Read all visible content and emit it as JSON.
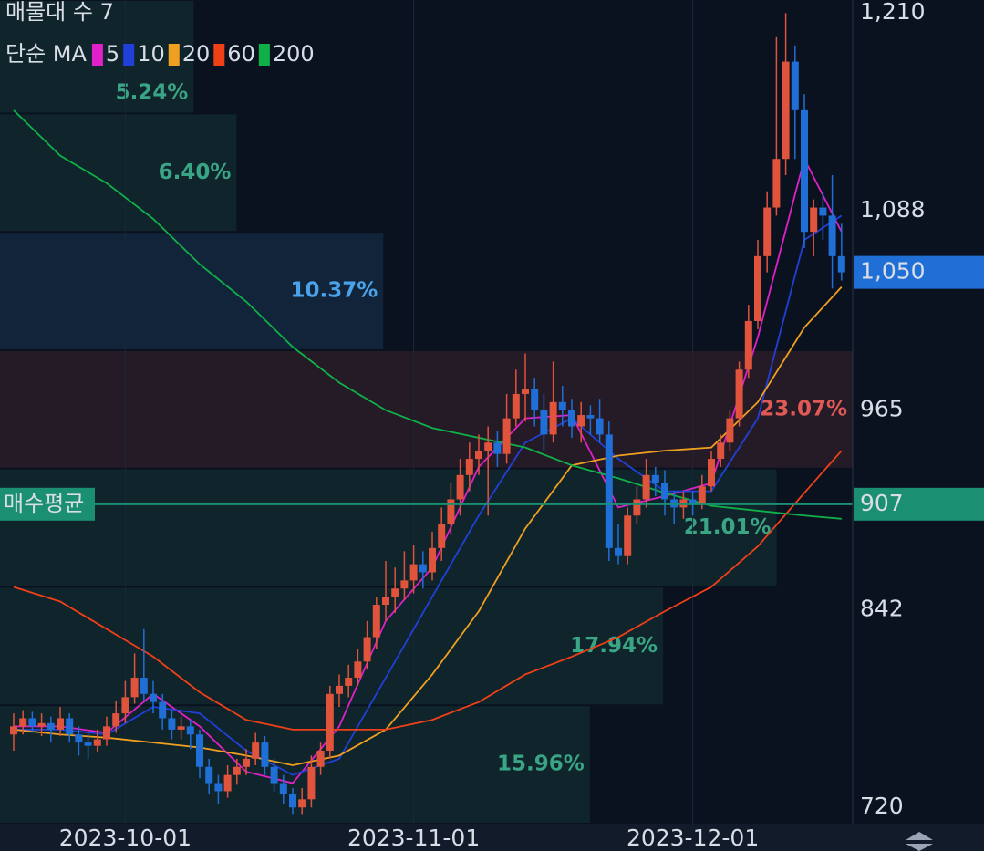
{
  "header": {
    "title": "매물대 수 7",
    "ma_label": "단순 MA"
  },
  "chart_data": {
    "type": "candlestick",
    "categories": [
      null,
      null,
      null,
      null,
      null,
      null,
      null,
      null,
      null,
      null,
      null,
      null,
      "2023-10-01",
      null,
      null,
      null,
      null,
      null,
      null,
      null,
      null,
      null,
      null,
      null,
      null,
      null,
      null,
      null,
      null,
      null,
      null,
      null,
      null,
      null,
      null,
      null,
      null,
      null,
      null,
      null,
      null,
      null,
      null,
      "2023-11-01",
      null,
      null,
      null,
      null,
      null,
      null,
      null,
      null,
      null,
      null,
      null,
      null,
      null,
      null,
      null,
      null,
      null,
      null,
      null,
      null,
      null,
      null,
      null,
      null,
      null,
      null,
      null,
      null,
      null,
      "2023-12-01",
      null,
      null,
      null,
      null,
      null,
      null,
      null,
      null,
      null,
      null,
      null,
      null,
      null,
      null,
      null,
      null
    ],
    "candles": [
      [
        765,
        778,
        755,
        770
      ],
      [
        770,
        780,
        765,
        775
      ],
      [
        775,
        779,
        766,
        770
      ],
      [
        770,
        778,
        764,
        772
      ],
      [
        772,
        776,
        760,
        768
      ],
      [
        768,
        782,
        764,
        775
      ],
      [
        775,
        778,
        760,
        765
      ],
      [
        765,
        770,
        752,
        760
      ],
      [
        760,
        766,
        750,
        758
      ],
      [
        758,
        768,
        754,
        762
      ],
      [
        762,
        776,
        758,
        770
      ],
      [
        770,
        786,
        766,
        778
      ],
      [
        778,
        798,
        772,
        788
      ],
      [
        788,
        815,
        784,
        800
      ],
      [
        800,
        830,
        786,
        790
      ],
      [
        790,
        798,
        778,
        785
      ],
      [
        785,
        790,
        768,
        775
      ],
      [
        775,
        780,
        762,
        768
      ],
      [
        768,
        776,
        762,
        770
      ],
      [
        770,
        774,
        756,
        765
      ],
      [
        765,
        768,
        738,
        745
      ],
      [
        745,
        750,
        728,
        735
      ],
      [
        735,
        740,
        722,
        730
      ],
      [
        730,
        746,
        726,
        740
      ],
      [
        740,
        750,
        734,
        745
      ],
      [
        745,
        756,
        740,
        750
      ],
      [
        750,
        766,
        746,
        760
      ],
      [
        760,
        764,
        740,
        745
      ],
      [
        745,
        750,
        730,
        735
      ],
      [
        735,
        740,
        722,
        728
      ],
      [
        728,
        732,
        716,
        720
      ],
      [
        720,
        732,
        716,
        725
      ],
      [
        725,
        752,
        720,
        745
      ],
      [
        745,
        760,
        740,
        755
      ],
      [
        755,
        795,
        750,
        790
      ],
      [
        790,
        802,
        782,
        795
      ],
      [
        795,
        808,
        788,
        800
      ],
      [
        800,
        818,
        795,
        810
      ],
      [
        810,
        835,
        805,
        825
      ],
      [
        825,
        850,
        818,
        845
      ],
      [
        845,
        872,
        835,
        850
      ],
      [
        850,
        868,
        840,
        855
      ],
      [
        855,
        878,
        848,
        860
      ],
      [
        860,
        882,
        852,
        870
      ],
      [
        870,
        878,
        855,
        865
      ],
      [
        865,
        890,
        860,
        880
      ],
      [
        880,
        905,
        872,
        895
      ],
      [
        895,
        920,
        888,
        910
      ],
      [
        910,
        935,
        900,
        925
      ],
      [
        925,
        945,
        915,
        935
      ],
      [
        935,
        950,
        925,
        940
      ],
      [
        940,
        955,
        900,
        945
      ],
      [
        945,
        952,
        930,
        938
      ],
      [
        938,
        975,
        932,
        960
      ],
      [
        960,
        990,
        955,
        975
      ],
      [
        975,
        1000,
        958,
        978
      ],
      [
        978,
        985,
        955,
        965
      ],
      [
        965,
        975,
        940,
        950
      ],
      [
        950,
        995,
        945,
        970
      ],
      [
        970,
        980,
        955,
        965
      ],
      [
        965,
        972,
        948,
        955
      ],
      [
        955,
        970,
        945,
        962
      ],
      [
        962,
        968,
        950,
        960
      ],
      [
        960,
        972,
        945,
        950
      ],
      [
        950,
        958,
        872,
        880
      ],
      [
        880,
        895,
        870,
        875
      ],
      [
        875,
        905,
        870,
        900
      ],
      [
        900,
        918,
        895,
        910
      ],
      [
        910,
        935,
        905,
        925
      ],
      [
        925,
        930,
        912,
        920
      ],
      [
        920,
        928,
        900,
        910
      ],
      [
        910,
        915,
        895,
        905
      ],
      [
        905,
        915,
        898,
        910
      ],
      [
        910,
        915,
        900,
        908
      ],
      [
        908,
        925,
        904,
        918
      ],
      [
        918,
        940,
        915,
        935
      ],
      [
        935,
        950,
        930,
        945
      ],
      [
        945,
        965,
        940,
        960
      ],
      [
        960,
        995,
        955,
        990
      ],
      [
        990,
        1030,
        985,
        1020
      ],
      [
        1020,
        1070,
        1015,
        1060
      ],
      [
        1060,
        1100,
        1050,
        1090
      ],
      [
        1090,
        1195,
        1085,
        1120
      ],
      [
        1120,
        1210,
        1110,
        1180
      ],
      [
        1180,
        1190,
        1120,
        1150
      ],
      [
        1150,
        1160,
        1065,
        1075
      ],
      [
        1075,
        1095,
        1060,
        1090
      ],
      [
        1090,
        1100,
        1070,
        1085
      ],
      [
        1085,
        1110,
        1040,
        1060
      ],
      [
        1060,
        1080,
        1045,
        1050
      ]
    ],
    "up_color": "#e0533c",
    "down_color": "#1f6fd6",
    "series": [
      {
        "name": "5",
        "color": "#e020c8",
        "x": [
          0,
          5,
          10,
          15,
          20,
          25,
          30,
          35,
          40,
          45,
          50,
          55,
          60,
          65,
          70,
          75,
          80,
          85,
          89
        ],
        "values": [
          770,
          770,
          766,
          790,
          770,
          742,
          735,
          770,
          835,
          868,
          930,
          960,
          962,
          905,
          912,
          920,
          1010,
          1120,
          1075
        ]
      },
      {
        "name": "10",
        "color": "#2040d8",
        "x": [
          0,
          5,
          10,
          15,
          20,
          25,
          30,
          35,
          40,
          45,
          50,
          55,
          60,
          65,
          70,
          75,
          80,
          85,
          89
        ],
        "values": [
          768,
          768,
          765,
          782,
          778,
          755,
          740,
          750,
          800,
          850,
          900,
          945,
          960,
          935,
          915,
          915,
          960,
          1070,
          1085
        ]
      },
      {
        "name": "20",
        "color": "#f0a020",
        "x": [
          0,
          5,
          10,
          15,
          20,
          25,
          30,
          35,
          40,
          45,
          50,
          55,
          60,
          65,
          70,
          75,
          80,
          85,
          89
        ],
        "values": [
          768,
          765,
          763,
          760,
          757,
          752,
          746,
          752,
          768,
          802,
          841,
          892,
          931,
          937,
          940,
          942,
          970,
          1016,
          1041
        ]
      },
      {
        "name": "60",
        "color": "#f04018",
        "x": [
          0,
          5,
          10,
          15,
          20,
          25,
          30,
          35,
          40,
          45,
          50,
          55,
          60,
          65,
          70,
          75,
          80,
          85,
          89
        ],
        "values": [
          856,
          847,
          830,
          813,
          791,
          774,
          768,
          768,
          768,
          774,
          785,
          802,
          813,
          825,
          841,
          856,
          881,
          914,
          940
        ]
      },
      {
        "name": "200",
        "color": "#10b048",
        "x": [
          0,
          5,
          10,
          15,
          20,
          25,
          30,
          35,
          40,
          45,
          50,
          55,
          60,
          65,
          70,
          75,
          80,
          85,
          89
        ],
        "values": [
          1150,
          1122,
          1105,
          1083,
          1055,
          1032,
          1004,
          982,
          965,
          954,
          948,
          942,
          931,
          923,
          914,
          906,
          903,
          900,
          898
        ]
      }
    ],
    "volume_profile": {
      "bins": [
        710,
        783,
        856,
        929,
        1002,
        1075,
        1148,
        1221
      ],
      "values": [
        15.96,
        17.94,
        21.01,
        23.07,
        10.37,
        6.4,
        5.24
      ],
      "value_labels": [
        "15.96%",
        "17.94%",
        "21.01%",
        "23.07%",
        "10.37%",
        "6.40%",
        "5.24%"
      ],
      "colors": [
        "#3aa585",
        "#3aa585",
        "#3aa585",
        "#e05a55",
        "#4aa2ea",
        "#3aa585",
        "#3aa585"
      ]
    },
    "ylim": [
      710,
      1218
    ],
    "yticks": [
      720,
      {
        "value": 842,
        "label": "842"
      },
      965,
      {
        "value": 1088,
        "label": "1,088"
      },
      {
        "value": 1210,
        "label": "1,210"
      }
    ],
    "current_price": {
      "value": 1050,
      "label": "1,050",
      "color": "#1f6fd6"
    },
    "average_buy": {
      "name": "매수평균",
      "value": 907,
      "color": "#1a8f72"
    }
  }
}
